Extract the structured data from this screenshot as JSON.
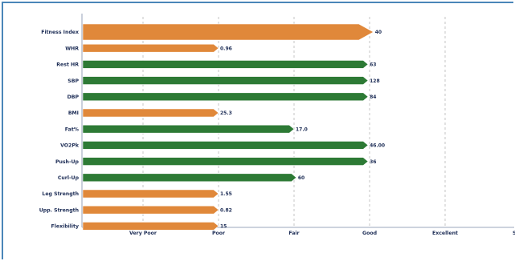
{
  "chart_data": {
    "type": "bar",
    "orientation": "horizontal",
    "categories": [
      "Fitness Index",
      "WHR",
      "Rest HR",
      "SBP",
      "DBP",
      "BMI",
      "Fat%",
      "VO2Pk",
      "Push-Up",
      "Curl-Up",
      "Leg Strength",
      "Upp. Strength",
      "Flexibility"
    ],
    "values": [
      3.05,
      1.0,
      2.98,
      2.98,
      2.98,
      1.0,
      2.0,
      2.98,
      2.98,
      2.03,
      1.0,
      1.0,
      1.0
    ],
    "value_labels": [
      "40",
      "0.96",
      "63",
      "128",
      "84",
      "25.3",
      "17.0",
      "46.00",
      "36",
      "60",
      "1.55",
      "0.82",
      "15"
    ],
    "rating": [
      "poor",
      "poor",
      "good",
      "good",
      "good",
      "poor",
      "good",
      "good",
      "good",
      "good",
      "poor",
      "poor",
      "poor"
    ],
    "x_ticks": [
      "Very Poor",
      "Poor",
      "Fair",
      "Good",
      "Excellent",
      "Superior"
    ],
    "xlim": [
      -1,
      4.6
    ],
    "grid": "vertical-dashed",
    "colors": {
      "poor": "#e0883a",
      "good": "#2d7a35",
      "text": "#1c2c55",
      "grid": "#b8b8b8",
      "frame": "#4a86b8"
    }
  }
}
